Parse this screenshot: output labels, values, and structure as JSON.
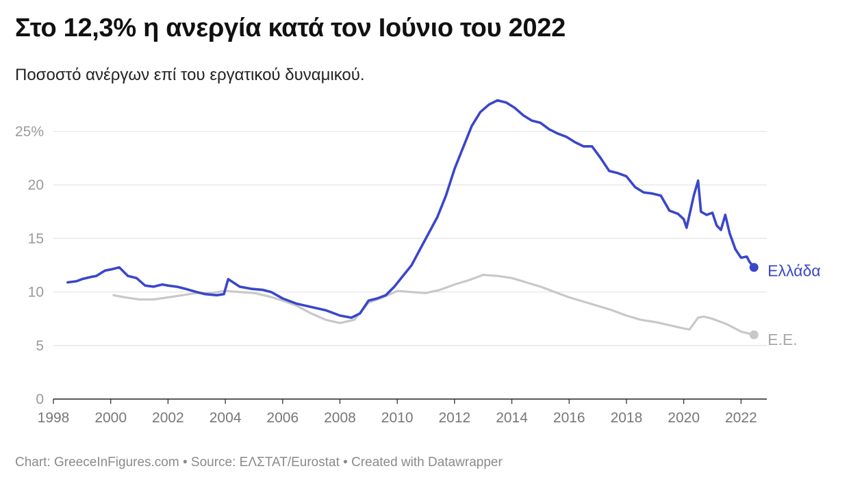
{
  "header": {
    "title": "Στο 12,3% η ανεργία κατά τον Ιούνιο του 2022",
    "subtitle": "Ποσοστό ανέργων επί του εργατικού δυναμικού."
  },
  "footer": {
    "text": "Chart: GreeceInFigures.com • Source: ΕΛΣΤΑΤ/Eurostat • Created with Datawrapper"
  },
  "chart_data": {
    "type": "line",
    "xlim": [
      1998,
      2022.9
    ],
    "ylim": [
      0,
      28
    ],
    "y_ticks": [
      0,
      5,
      10,
      15,
      20,
      25
    ],
    "y_tick_labels": [
      "0",
      "5",
      "10",
      "15",
      "20",
      "25%"
    ],
    "x_ticks": [
      1998,
      2000,
      2002,
      2004,
      2006,
      2008,
      2010,
      2012,
      2014,
      2016,
      2018,
      2020,
      2022
    ],
    "x_tick_labels": [
      "1998",
      "2000",
      "2002",
      "2004",
      "2006",
      "2008",
      "2010",
      "2012",
      "2014",
      "2016",
      "2018",
      "2020",
      "2022"
    ],
    "grid": true,
    "series": [
      {
        "name": "Ελλάδα",
        "color": "#3a46c9",
        "x": [
          1998.5,
          1998.8,
          1999.0,
          1999.3,
          1999.5,
          1999.8,
          2000.0,
          2000.3,
          2000.6,
          2000.9,
          2001.2,
          2001.5,
          2001.8,
          2002.0,
          2002.3,
          2002.6,
          2003.0,
          2003.3,
          2003.7,
          2003.95,
          2004.1,
          2004.5,
          2004.9,
          2005.3,
          2005.6,
          2006.0,
          2006.5,
          2007.0,
          2007.5,
          2008.0,
          2008.4,
          2008.7,
          2009.0,
          2009.3,
          2009.6,
          2009.9,
          2010.2,
          2010.5,
          2010.8,
          2011.1,
          2011.4,
          2011.7,
          2012.0,
          2012.3,
          2012.6,
          2012.9,
          2013.2,
          2013.5,
          2013.8,
          2014.1,
          2014.4,
          2014.7,
          2015.0,
          2015.3,
          2015.6,
          2015.9,
          2016.2,
          2016.5,
          2016.8,
          2017.1,
          2017.4,
          2017.7,
          2018.0,
          2018.3,
          2018.6,
          2018.9,
          2019.2,
          2019.5,
          2019.8,
          2020.0,
          2020.1,
          2020.35,
          2020.5,
          2020.6,
          2020.8,
          2021.0,
          2021.15,
          2021.3,
          2021.45,
          2021.6,
          2021.8,
          2022.0,
          2022.2,
          2022.3,
          2022.45
        ],
        "values": [
          10.9,
          11.0,
          11.2,
          11.4,
          11.5,
          12.0,
          12.1,
          12.3,
          11.5,
          11.3,
          10.6,
          10.5,
          10.7,
          10.6,
          10.5,
          10.3,
          10.0,
          9.8,
          9.7,
          9.8,
          11.2,
          10.5,
          10.3,
          10.2,
          10.0,
          9.4,
          8.9,
          8.6,
          8.3,
          7.8,
          7.6,
          8.0,
          9.2,
          9.4,
          9.7,
          10.5,
          11.5,
          12.5,
          14.0,
          15.5,
          17.0,
          19.0,
          21.5,
          23.5,
          25.5,
          26.8,
          27.5,
          27.9,
          27.7,
          27.2,
          26.5,
          26.0,
          25.8,
          25.2,
          24.8,
          24.5,
          24.0,
          23.6,
          23.6,
          22.5,
          21.3,
          21.1,
          20.8,
          19.8,
          19.3,
          19.2,
          19.0,
          17.6,
          17.3,
          16.8,
          16.0,
          19.0,
          20.4,
          17.5,
          17.2,
          17.4,
          16.2,
          15.8,
          17.2,
          15.5,
          14.0,
          13.2,
          13.3,
          12.8,
          12.3
        ]
      },
      {
        "name": "Ε.Ε.",
        "color": "#c8c8c8",
        "x": [
          2000.1,
          2000.5,
          2001.0,
          2001.5,
          2002.0,
          2002.5,
          2003.0,
          2003.5,
          2004.0,
          2004.5,
          2005.0,
          2005.5,
          2006.0,
          2006.5,
          2007.0,
          2007.5,
          2008.0,
          2008.5,
          2009.0,
          2009.5,
          2010.0,
          2010.5,
          2011.0,
          2011.5,
          2012.0,
          2012.5,
          2013.0,
          2013.5,
          2014.0,
          2014.5,
          2015.0,
          2015.5,
          2016.0,
          2016.5,
          2017.0,
          2017.5,
          2018.0,
          2018.5,
          2019.0,
          2019.5,
          2020.0,
          2020.2,
          2020.5,
          2020.7,
          2021.0,
          2021.5,
          2022.0,
          2022.45
        ],
        "values": [
          9.7,
          9.5,
          9.3,
          9.3,
          9.5,
          9.7,
          9.9,
          9.9,
          10.1,
          10.0,
          9.9,
          9.6,
          9.2,
          8.7,
          8.0,
          7.4,
          7.1,
          7.4,
          9.0,
          9.5,
          10.1,
          10.0,
          9.9,
          10.2,
          10.7,
          11.1,
          11.6,
          11.5,
          11.3,
          10.9,
          10.5,
          10.0,
          9.5,
          9.1,
          8.7,
          8.3,
          7.8,
          7.4,
          7.2,
          6.9,
          6.6,
          6.5,
          7.6,
          7.7,
          7.5,
          7.0,
          6.3,
          6.0
        ]
      }
    ]
  }
}
